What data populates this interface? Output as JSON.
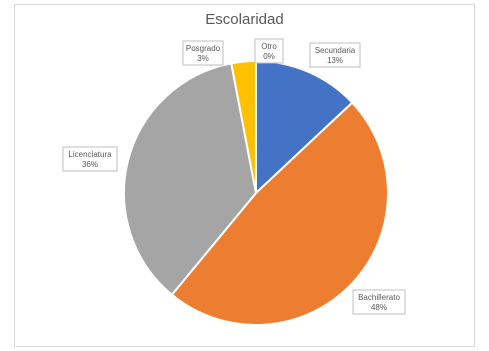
{
  "chart_data": {
    "type": "pie",
    "title": "Escolaridad",
    "slices": [
      {
        "label": "Secundaria",
        "value": 13,
        "pct_label": "13%",
        "color": "#4472c4"
      },
      {
        "label": "Bachillerato",
        "value": 48,
        "pct_label": "48%",
        "color": "#ed7d31"
      },
      {
        "label": "Licenciatura",
        "value": 36,
        "pct_label": "36%",
        "color": "#a5a5a5"
      },
      {
        "label": "Posgrado",
        "value": 3,
        "pct_label": "3%",
        "color": "#ffc000"
      },
      {
        "label": "Otro",
        "value": 0,
        "pct_label": "0%",
        "color": "#5b9bd5"
      }
    ],
    "legend": "none"
  }
}
